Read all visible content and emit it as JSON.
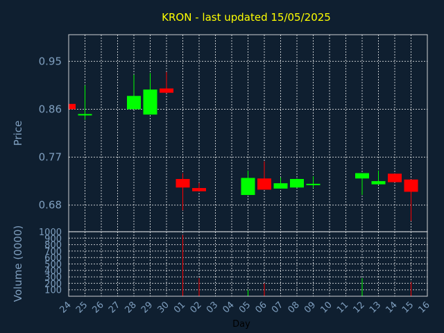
{
  "chart_data": {
    "type": "candlestick",
    "title": "KRON - last updated 15/05/2025",
    "xlabel": "Day",
    "ylabel": "Price",
    "volume_label": "Volume (0000)",
    "price_ticks": [
      "0.95",
      "0.86",
      "0.77",
      "0.68"
    ],
    "price_tick_values": [
      0.95,
      0.86,
      0.77,
      0.68
    ],
    "ylim": [
      0.63,
      1.0
    ],
    "volume_ticks": [
      "100",
      "200",
      "300",
      "400",
      "500",
      "600",
      "700",
      "800",
      "900",
      "1000"
    ],
    "volume_tick_values": [
      100,
      200,
      300,
      400,
      500,
      600,
      700,
      800,
      900,
      1000
    ],
    "volume_ylim": [
      0,
      1000
    ],
    "x_labels": [
      "24",
      "25",
      "26",
      "27",
      "28",
      "29",
      "30",
      "01",
      "02",
      "03",
      "04",
      "05",
      "06",
      "07",
      "08",
      "09",
      "10",
      "11",
      "12",
      "13",
      "14",
      "15",
      "16"
    ],
    "candles": [
      {
        "day": "24",
        "open": 0.87,
        "high": 0.87,
        "low": 0.86,
        "close": 0.86,
        "volume": 0
      },
      {
        "day": "25",
        "open": 0.85,
        "high": 0.905,
        "low": 0.84,
        "close": 0.851,
        "volume": 0
      },
      {
        "day": "28",
        "open": 0.86,
        "high": 0.925,
        "low": 0.86,
        "close": 0.885,
        "volume": 0
      },
      {
        "day": "29",
        "open": 0.85,
        "high": 0.928,
        "low": 0.85,
        "close": 0.897,
        "volume": 0
      },
      {
        "day": "30",
        "open": 0.899,
        "high": 0.93,
        "low": 0.89,
        "close": 0.891,
        "volume": 0
      },
      {
        "day": "01",
        "open": 0.729,
        "high": 0.74,
        "low": 0.67,
        "close": 0.713,
        "volume": 950
      },
      {
        "day": "02",
        "open": 0.712,
        "high": 0.722,
        "low": 0.706,
        "close": 0.706,
        "volume": 280
      },
      {
        "day": "05",
        "open": 0.699,
        "high": 0.745,
        "low": 0.699,
        "close": 0.731,
        "volume": 100
      },
      {
        "day": "06",
        "open": 0.73,
        "high": 0.762,
        "low": 0.709,
        "close": 0.709,
        "volume": 200
      },
      {
        "day": "07",
        "open": 0.711,
        "high": 0.732,
        "low": 0.711,
        "close": 0.721,
        "volume": 0
      },
      {
        "day": "08",
        "open": 0.713,
        "high": 0.73,
        "low": 0.713,
        "close": 0.729,
        "volume": 0
      },
      {
        "day": "09",
        "open": 0.718,
        "high": 0.734,
        "low": 0.712,
        "close": 0.72,
        "volume": 0
      },
      {
        "day": "12",
        "open": 0.73,
        "high": 0.74,
        "low": 0.699,
        "close": 0.74,
        "volume": 280
      },
      {
        "day": "13",
        "open": 0.719,
        "high": 0.745,
        "low": 0.719,
        "close": 0.725,
        "volume": 0
      },
      {
        "day": "14",
        "open": 0.739,
        "high": 0.739,
        "low": 0.723,
        "close": 0.723,
        "volume": 0
      },
      {
        "day": "15",
        "open": 0.728,
        "high": 0.728,
        "low": 0.65,
        "close": 0.705,
        "volume": 220
      }
    ],
    "colors": {
      "background": "#0f1f30",
      "up": "#00ff00",
      "down": "#ff0000",
      "title": "#ffff00",
      "text": "#7f9fbf",
      "grid": "#ffffff"
    },
    "grid": true
  }
}
